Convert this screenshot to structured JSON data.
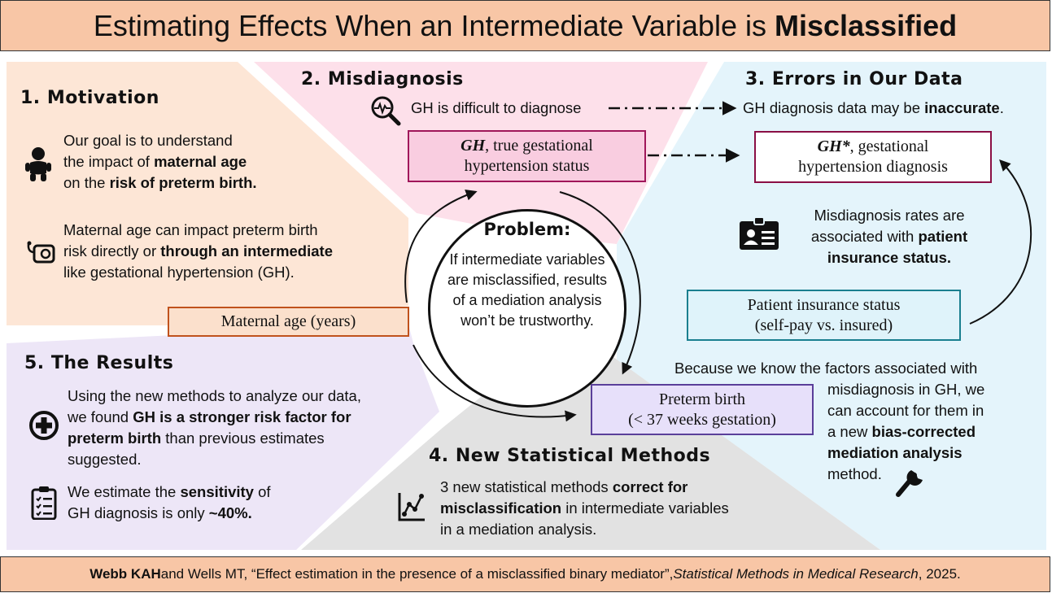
{
  "header": {
    "title_plain": "Estimating Effects When an Intermediate Variable is ",
    "title_bold": "Misclassified"
  },
  "motivation": {
    "title": "1. Motivation",
    "p1_a": "Our goal is to understand",
    "p1_b": "the impact of ",
    "p1_b_bold": "maternal age",
    "p1_c": "on the ",
    "p1_c_bold": "risk of preterm birth.",
    "p2_a": "Maternal age can impact preterm birth",
    "p2_b": "risk directly or ",
    "p2_b_bold": "through an intermediate",
    "p2_c": "like gestational hypertension (GH)."
  },
  "misdiagnosis": {
    "title": "2. Misdiagnosis",
    "text": "GH is difficult to diagnose"
  },
  "errors": {
    "title": "3. Errors in Our Data",
    "text_a": "GH diagnosis data may be ",
    "text_bold": "inaccurate",
    "text_end": ".",
    "rates_a": "Misdiagnosis rates are",
    "rates_b": "associated with ",
    "rates_b_bold": "patient",
    "rates_c_bold": "insurance status.",
    "because_a": "Because we know the factors associated with",
    "because_b": "misdiagnosis in GH, we",
    "because_c": "can account for them in",
    "because_d": "a new ",
    "because_d_bold": "bias-corrected",
    "because_e_bold": "mediation analysis",
    "because_f": "method."
  },
  "methods": {
    "title": "4. New Statistical Methods",
    "text_a": "3 new statistical methods ",
    "text_a_bold": "correct for",
    "text_b_bold": "misclassification",
    "text_b": " in intermediate variables",
    "text_c": "in a mediation analysis."
  },
  "results": {
    "title": "5. The Results",
    "p1_a": "Using the new methods to analyze our data,",
    "p1_b": "we found ",
    "p1_b_bold": "GH is a stronger risk factor for",
    "p1_c_bold": "preterm birth",
    "p1_c": " than previous estimates",
    "p1_d": "suggested.",
    "p2_a": "We estimate the ",
    "p2_a_bold": "sensitivity",
    "p2_a_end": " of",
    "p2_b": "GH diagnosis is only ",
    "p2_b_bold": "~40%."
  },
  "nodes": {
    "gh_true_italic": "GH",
    "gh_true_rest": ", true gestational",
    "gh_true_line2": "hypertension status",
    "gh_star_italic": "GH*",
    "gh_star_rest": ", gestational",
    "gh_star_line2": "hypertension diagnosis",
    "maternal_age": "Maternal age (years)",
    "insurance_line1": "Patient insurance status",
    "insurance_line2": "(self-pay vs. insured)",
    "preterm_line1": "Preterm birth",
    "preterm_line2": "(< 37 weeks gestation)"
  },
  "problem": {
    "title": "Problem:",
    "body": "If intermediate variables are misclassified, results of a mediation analysis won’t be trustworthy."
  },
  "footer": {
    "author_bold": "Webb KAH",
    "author_rest": " and Wells MT, “Effect estimation in the presence of a misclassified binary mediator”, ",
    "journal": "Statistical Methods in Medical Research",
    "year": ", 2025."
  },
  "colors": {
    "header_bg": "#f8c6a6",
    "motivation_bg": "#fde6d6",
    "misdiagnosis_bg": "#fde0ea",
    "errors_bg": "#e4f4fb",
    "methods_bg": "#e2e2e2",
    "results_bg": "#ede6f7",
    "gh_true_fill": "#f9cde0",
    "gh_true_border": "#a0175a",
    "gh_star_border": "#8a0f45",
    "maternal_fill": "#fbe0cc",
    "maternal_border": "#c0521c",
    "insurance_fill": "#dff3fa",
    "insurance_border": "#1a7f8f",
    "preterm_fill": "#e7e0fa",
    "preterm_border": "#5a3f9a"
  },
  "icons": [
    "baby-icon",
    "blood-pressure-icon",
    "magnifier-heartbeat-icon",
    "id-card-icon",
    "plus-circle-icon",
    "clipboard-checklist-icon",
    "line-chart-icon",
    "wrench-icon"
  ]
}
